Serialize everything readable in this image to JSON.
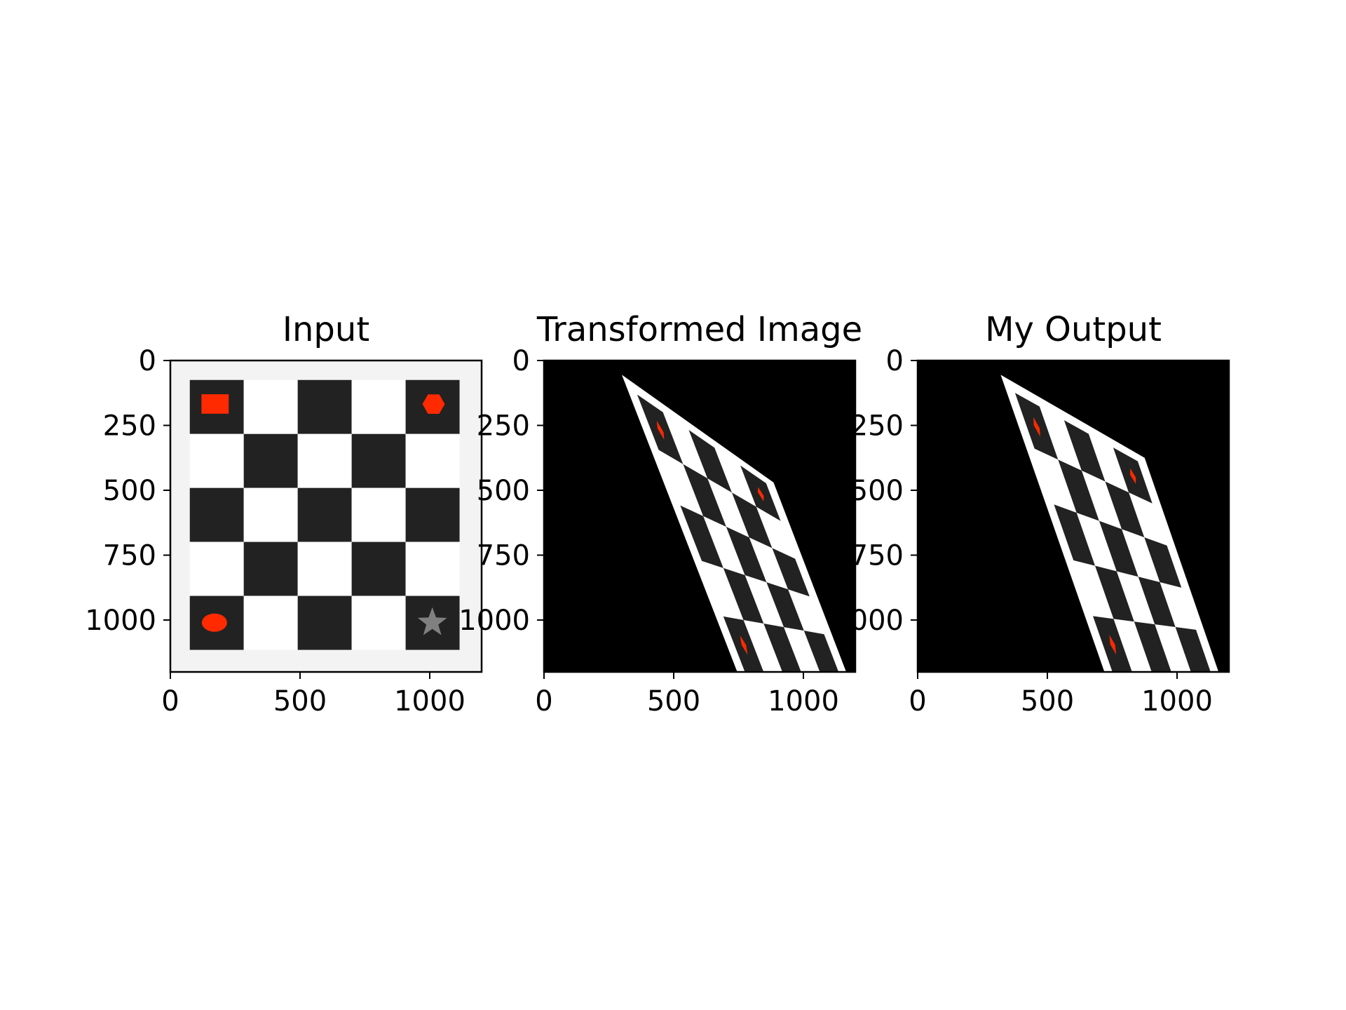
{
  "chart_data": [
    {
      "type": "image",
      "title": "Input",
      "xlim": [
        0,
        1200
      ],
      "ylim": [
        1200,
        0
      ],
      "xticks": [
        0,
        500,
        1000
      ],
      "yticks": [
        0,
        250,
        500,
        750,
        1000
      ],
      "colors": {
        "dark": "#222222",
        "light": "#ffffff",
        "marker": "#ff2a00",
        "star": "#808080"
      }
    },
    {
      "type": "image",
      "title": "Transformed Image",
      "xlim": [
        0,
        1200
      ],
      "ylim": [
        1200,
        0
      ],
      "xticks": [
        0,
        500,
        1000
      ],
      "yticks": [
        0,
        250,
        500,
        750,
        1000
      ],
      "colors": {
        "background": "#000000",
        "dark": "#222222",
        "light": "#ffffff",
        "marker": "#ff2a00"
      }
    },
    {
      "type": "image",
      "title": "My Output",
      "xlim": [
        0,
        1200
      ],
      "ylim": [
        1200,
        0
      ],
      "xticks": [
        0,
        500,
        1000
      ],
      "yticks": [
        0,
        250,
        500,
        750,
        1000
      ],
      "colors": {
        "background": "#000000",
        "dark": "#222222",
        "light": "#ffffff",
        "marker": "#ff2a00"
      }
    }
  ]
}
